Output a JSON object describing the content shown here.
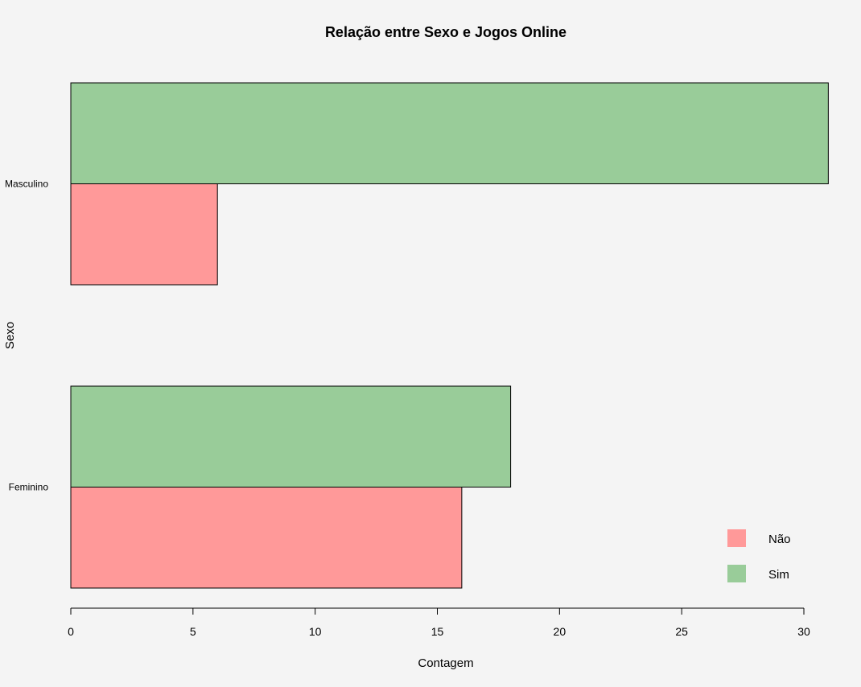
{
  "chart_data": {
    "type": "bar",
    "orientation": "horizontal",
    "title": "Relação entre Sexo e Jogos Online",
    "xlabel": "Contagem",
    "ylabel": "Sexo",
    "categories": [
      "Feminino",
      "Masculino"
    ],
    "series": [
      {
        "name": "Não",
        "values": [
          16,
          6
        ],
        "color": "#ff9999"
      },
      {
        "name": "Sim",
        "values": [
          18,
          31
        ],
        "color": "#99cc99"
      }
    ],
    "xlim": [
      0,
      31
    ],
    "xticks": [
      0,
      5,
      10,
      15,
      20,
      25,
      30
    ],
    "grid": false,
    "legend_position": "bottom-right",
    "background": "#f4f4f4"
  }
}
